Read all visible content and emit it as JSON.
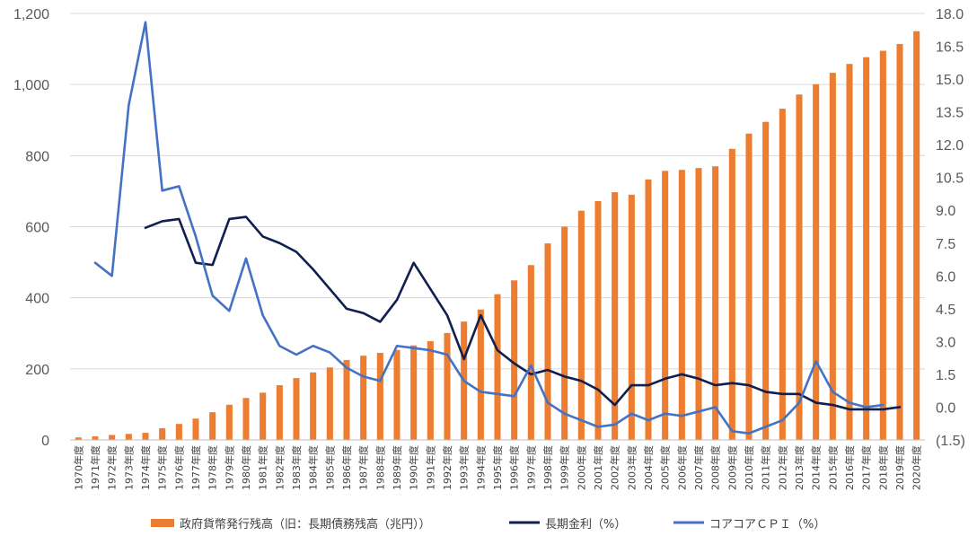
{
  "chart_data": {
    "type": "bar+line",
    "categories": [
      "1970年度",
      "1971年度",
      "1972年度",
      "1973年度",
      "1974年度",
      "1975年度",
      "1976年度",
      "1977年度",
      "1978年度",
      "1979年度",
      "1980年度",
      "1981年度",
      "1982年度",
      "1983年度",
      "1984年度",
      "1985年度",
      "1986年度",
      "1987年度",
      "1988年度",
      "1989年度",
      "1990年度",
      "1991年度",
      "1992年度",
      "1993年度",
      "1994年度",
      "1995年度",
      "1996年度",
      "1997年度",
      "1998年度",
      "1999年度",
      "2000年度",
      "2001年度",
      "2002年度",
      "2003年度",
      "2004年度",
      "2005年度",
      "2006年度",
      "2007年度",
      "2008年度",
      "2009年度",
      "2010年度",
      "2011年度",
      "2012年度",
      "2013年度",
      "2014年度",
      "2015年度",
      "2016年度",
      "2017年度",
      "2018年度",
      "2019年度",
      "2020年度"
    ],
    "series": [
      {
        "name": "政府貨幣発行残高（旧：長期債務残高（兆円））",
        "type": "bar",
        "axis": "left",
        "color": "#ed7d31",
        "values": [
          7,
          10,
          14,
          17,
          20,
          33,
          45,
          60,
          78,
          99,
          118,
          133,
          154,
          174,
          190,
          204,
          225,
          237,
          245,
          253,
          266,
          278,
          301,
          333,
          367,
          410,
          449,
          492,
          553,
          600,
          645,
          672,
          697,
          690,
          733,
          757,
          760,
          765,
          770,
          819,
          862,
          895,
          932,
          972,
          1001,
          1033,
          1058,
          1077,
          1095,
          1114,
          1150
        ]
      },
      {
        "name": "長期金利（%）",
        "type": "line",
        "axis": "right",
        "color": "#0f1f4f",
        "values": [
          null,
          null,
          null,
          null,
          8.2,
          8.5,
          8.6,
          6.6,
          6.5,
          8.6,
          8.7,
          7.8,
          7.5,
          7.1,
          6.3,
          5.4,
          4.5,
          4.3,
          3.9,
          4.9,
          6.6,
          5.4,
          4.2,
          2.2,
          4.2,
          2.6,
          2.0,
          1.5,
          1.7,
          1.4,
          1.2,
          0.8,
          0.1,
          1.0,
          1.0,
          1.3,
          1.5,
          1.3,
          1.0,
          1.1,
          1.0,
          0.7,
          0.6,
          0.6,
          0.2,
          0.1,
          -0.1,
          -0.1,
          -0.1,
          0.0,
          null
        ]
      },
      {
        "name": "コアコアＣＰＩ（%）",
        "type": "line",
        "axis": "right",
        "color": "#4472c4",
        "values": [
          null,
          6.6,
          6.0,
          13.8,
          17.6,
          9.9,
          10.1,
          7.8,
          5.1,
          4.4,
          6.8,
          4.2,
          2.8,
          2.4,
          2.8,
          2.5,
          1.8,
          1.4,
          1.2,
          2.8,
          2.7,
          2.6,
          2.4,
          1.2,
          0.7,
          0.6,
          0.5,
          1.9,
          0.2,
          -0.3,
          -0.6,
          -0.9,
          -0.8,
          -0.3,
          -0.6,
          -0.3,
          -0.4,
          -0.2,
          0.0,
          -1.1,
          -1.2,
          -0.9,
          -0.6,
          0.2,
          2.1,
          0.7,
          0.2,
          0.0,
          0.1,
          null,
          null
        ]
      }
    ],
    "y_left": {
      "min": 0,
      "max": 1200,
      "step": 200,
      "ticks": [
        "0",
        "200",
        "400",
        "600",
        "800",
        "1,000",
        "1,200"
      ]
    },
    "y_right": {
      "min": -1.5,
      "max": 18.0,
      "step": 1.5,
      "ticks": [
        "(1.5)",
        "0.0",
        "1.5",
        "3.0",
        "4.5",
        "6.0",
        "7.5",
        "9.0",
        "10.5",
        "12.0",
        "13.5",
        "15.0",
        "16.5",
        "18.0"
      ],
      "negative_color": "#c00000"
    },
    "grid": true,
    "legend_position": "bottom"
  }
}
